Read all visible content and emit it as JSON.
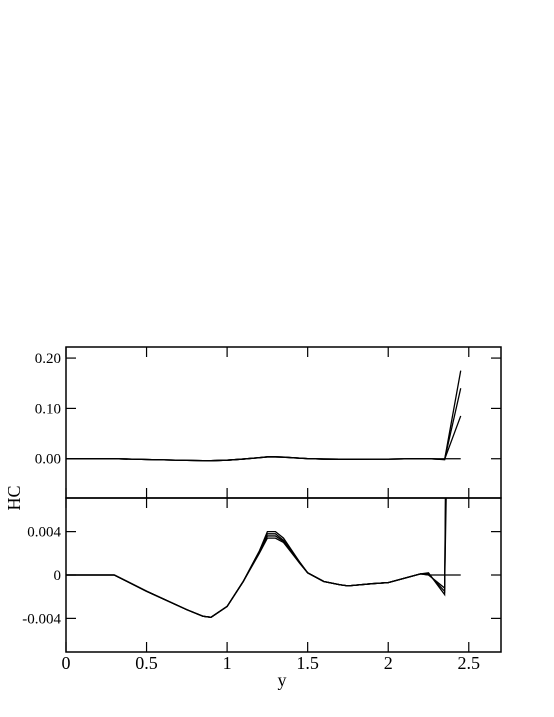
{
  "chart_data": {
    "type": "line",
    "x_label": "y",
    "y_label": "HC",
    "xlim": [
      0,
      2.7
    ],
    "xticks": [
      0,
      0.5,
      1,
      1.5,
      2,
      2.5
    ],
    "x": [
      0,
      0.3,
      0.5,
      0.75,
      0.85,
      0.9,
      1.0,
      1.1,
      1.2,
      1.25,
      1.3,
      1.35,
      1.45,
      1.5,
      1.6,
      1.7,
      1.75,
      1.9,
      2.0,
      2.1,
      2.2,
      2.25,
      2.35,
      2.45
    ],
    "series": [
      {
        "color": "#000000",
        "values": [
          0,
          0,
          -0.0015,
          -0.0032,
          -0.0038,
          -0.0039,
          -0.0029,
          -0.0006,
          0.0022,
          0.004,
          0.004,
          0.0034,
          0.0012,
          0.0002,
          -0.0006,
          -0.0009,
          -0.001,
          -0.0008,
          -0.0007,
          -0.0003,
          0.0001,
          0.0002,
          -0.0018,
          0.175
        ]
      },
      {
        "color": "#000000",
        "values": [
          0,
          0,
          -0.0015,
          -0.0032,
          -0.0038,
          -0.0039,
          -0.0029,
          -0.0006,
          0.0022,
          0.0038,
          0.0038,
          0.0032,
          0.0012,
          0.0002,
          -0.0006,
          -0.0009,
          -0.001,
          -0.0008,
          -0.0007,
          -0.0003,
          0.0001,
          0.0001,
          -0.0015,
          0.14
        ]
      },
      {
        "color": "#000000",
        "values": [
          0,
          0,
          -0.0015,
          -0.0032,
          -0.0038,
          -0.0039,
          -0.0029,
          -0.0006,
          0.0021,
          0.0036,
          0.0036,
          0.0031,
          0.0011,
          0.0002,
          -0.0006,
          -0.0009,
          -0.001,
          -0.0008,
          -0.0007,
          -0.0003,
          0.0001,
          0,
          -0.0012,
          0.085
        ]
      },
      {
        "color": "#000000",
        "values": [
          0,
          0,
          -0.0015,
          -0.0032,
          -0.0038,
          -0.0039,
          -0.0029,
          -0.0006,
          0.002,
          0.0034,
          0.0034,
          0.003,
          0.0011,
          0.0002,
          -0.0006,
          -0.0009,
          -0.001,
          -0.0008,
          -0.0007,
          -0.0003,
          0.0001,
          0,
          0,
          0
        ]
      }
    ],
    "panels": [
      {
        "ylim": [
          -0.078,
          0.222
        ],
        "yticks": [
          {
            "value": 0.2,
            "label": "0.20"
          },
          {
            "value": 0.1,
            "label": "0.10"
          },
          {
            "value": 0,
            "label": "0.00"
          }
        ]
      },
      {
        "ylim": [
          -0.0071,
          0.0071
        ],
        "yticks": [
          0.004,
          0,
          -0.004
        ]
      }
    ]
  }
}
